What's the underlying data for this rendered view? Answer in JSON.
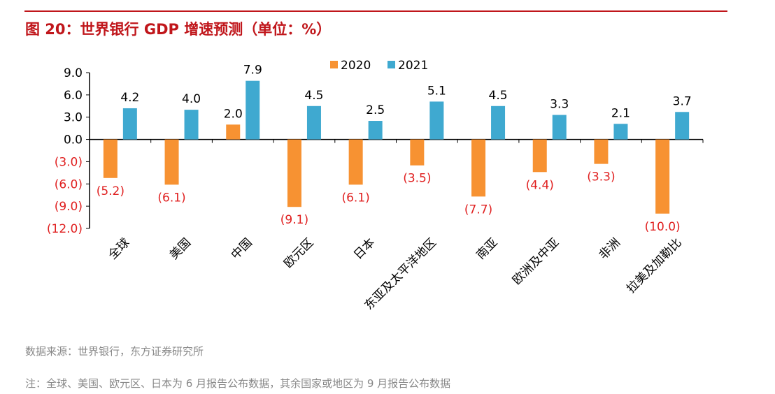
{
  "title": "图 20：世界银行 GDP 增速预测（单位：%）",
  "source": "数据来源：世界银行，东方证券研究所",
  "note": "注：全球、美国、欧元区、日本为 6 月报告公布数据，其余国家或地区为 9 月报告公布数据",
  "chart_data": {
    "type": "bar",
    "categories": [
      "全球",
      "美国",
      "中国",
      "欧元区",
      "日本",
      "东亚及太平洋地区",
      "南亚",
      "欧洲及中亚",
      "非洲",
      "拉美及加勒比"
    ],
    "series": [
      {
        "name": "2020",
        "color": "#f79232",
        "values": [
          -5.2,
          -6.1,
          2.0,
          -9.1,
          -6.1,
          -3.5,
          -7.7,
          -4.4,
          -3.3,
          -10.0
        ]
      },
      {
        "name": "2021",
        "color": "#3fa9d0",
        "values": [
          4.2,
          4.0,
          7.9,
          4.5,
          2.5,
          5.1,
          4.5,
          3.3,
          2.1,
          3.7
        ]
      }
    ],
    "ylim": [
      -12,
      9
    ],
    "yticks": [
      9,
      6,
      3,
      0,
      -3,
      -6,
      -9,
      -12
    ],
    "ytick_labels": [
      "9.0",
      "6.0",
      "3.0",
      "0.0",
      "(3.0)",
      "(6.0)",
      "(9.0)",
      "(12.0)"
    ],
    "negative_label_color": "#e02020",
    "legend": "top",
    "grid": false
  }
}
